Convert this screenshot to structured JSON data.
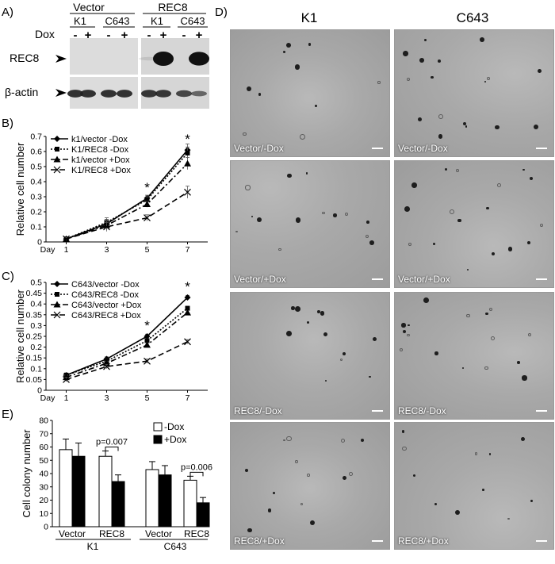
{
  "panels": {
    "a": "A)",
    "b": "B)",
    "c": "C)",
    "d": "D)",
    "e": "E)"
  },
  "western": {
    "groups": [
      "Vector",
      "REC8"
    ],
    "cell_lines": [
      "K1",
      "C643",
      "K1",
      "C643"
    ],
    "dox_label": "Dox",
    "dox_signs": [
      "-",
      "+",
      "-",
      "+",
      "-",
      "+",
      "-",
      "+"
    ],
    "rows": [
      "REC8",
      "β-actin"
    ],
    "rec8_band_intensity": [
      0,
      0,
      0,
      0,
      0.05,
      1.0,
      0,
      0.95
    ],
    "actin_band_intensity": [
      0.95,
      0.95,
      0.95,
      0.95,
      0.9,
      0.9,
      0.75,
      0.45
    ]
  },
  "chart_data": [
    {
      "type": "line",
      "panel": "B",
      "ylabel": "Relative cell number",
      "xlabel_prefix": "Day",
      "x": [
        1,
        3,
        5,
        7
      ],
      "ylim": [
        0,
        0.7
      ],
      "yticks": [
        "0",
        "0.1",
        "0.2",
        "0.3",
        "0.4",
        "0.5",
        "0.6",
        "0.7"
      ],
      "series": [
        {
          "name": "k1/vector  -Dox",
          "values": [
            0.02,
            0.12,
            0.29,
            0.61
          ],
          "marker": "diamond",
          "dash": "solid"
        },
        {
          "name": "K1/REC8 -Dox",
          "values": [
            0.02,
            0.13,
            0.28,
            0.59
          ],
          "marker": "square",
          "dash": "dot"
        },
        {
          "name": "k1/vector  +Dox",
          "values": [
            0.02,
            0.11,
            0.25,
            0.52
          ],
          "marker": "triangle",
          "dash": "dashdot"
        },
        {
          "name": "K1/REC8 +Dox",
          "values": [
            0.02,
            0.1,
            0.16,
            0.33
          ],
          "marker": "x",
          "dash": "dash"
        }
      ],
      "error": [
        0.01,
        0.03,
        0.02,
        0.04
      ],
      "significance": {
        "x": [
          5,
          7
        ],
        "mark": "*"
      }
    },
    {
      "type": "line",
      "panel": "C",
      "ylabel": "Relative cell number",
      "xlabel_prefix": "Day",
      "x": [
        1,
        3,
        5,
        7
      ],
      "ylim": [
        0,
        0.5
      ],
      "yticks": [
        "0",
        "0.05",
        "0.1",
        "0.15",
        "0.2",
        "0.25",
        "0.3",
        "0.35",
        "0.4",
        "0.45",
        "0.5"
      ],
      "series": [
        {
          "name": "C643/vector  -Dox",
          "values": [
            0.07,
            0.145,
            0.25,
            0.43
          ],
          "marker": "diamond",
          "dash": "solid"
        },
        {
          "name": "C643/REC8 -Dox",
          "values": [
            0.07,
            0.135,
            0.23,
            0.38
          ],
          "marker": "square",
          "dash": "dot"
        },
        {
          "name": "C643/vector  +Dox",
          "values": [
            0.06,
            0.125,
            0.21,
            0.36
          ],
          "marker": "triangle",
          "dash": "dashdot"
        },
        {
          "name": "C643/REC8 +Dox",
          "values": [
            0.05,
            0.11,
            0.135,
            0.225
          ],
          "marker": "x",
          "dash": "dash"
        }
      ],
      "error": [
        0.01,
        0.01,
        0.01,
        0.01
      ],
      "significance": {
        "x": [
          5,
          7
        ],
        "mark": "*"
      }
    },
    {
      "type": "bar",
      "panel": "E",
      "ylabel": "Cell colony number",
      "ylim": [
        0,
        80
      ],
      "yticks": [
        "0",
        "10",
        "20",
        "30",
        "40",
        "50",
        "60",
        "70",
        "80"
      ],
      "categories": [
        "Vector",
        "REC8",
        "Vector",
        "REC8"
      ],
      "group_labels": [
        "K1",
        "C643"
      ],
      "series": [
        {
          "name": "-Dox",
          "values": [
            58,
            53,
            43,
            35
          ],
          "errors": [
            8,
            4,
            6,
            3
          ],
          "fill": "#ffffff"
        },
        {
          "name": "+Dox",
          "values": [
            53,
            34,
            39,
            18
          ],
          "errors": [
            10,
            5,
            7,
            4
          ],
          "fill": "#000000"
        }
      ],
      "pvalues": [
        {
          "category": 1,
          "text": "p=0.007"
        },
        {
          "category": 3,
          "text": "p=0.006"
        }
      ]
    }
  ],
  "micrographs": {
    "columns": [
      "K1",
      "C643"
    ],
    "labels": [
      "Vector/-Dox",
      "Vector/-Dox",
      "Vector/+Dox",
      "Vector/+Dox",
      "REC8/-Dox",
      "REC8/-Dox",
      "REC8/+Dox",
      "REC8/+Dox"
    ]
  }
}
